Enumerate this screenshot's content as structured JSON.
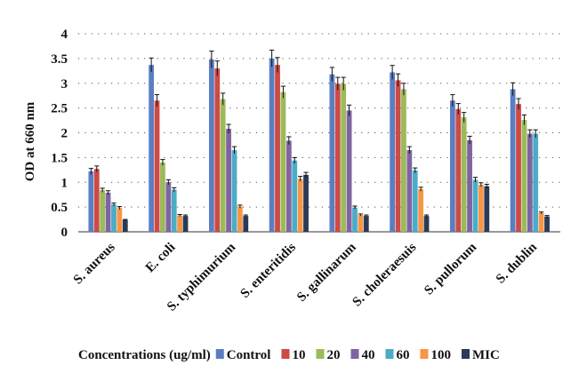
{
  "chart_data": {
    "type": "bar",
    "ylabel": "OD at 660 nm",
    "ylim": [
      0,
      4
    ],
    "yticks": [
      "0",
      "0.5",
      "1",
      "1.5",
      "2",
      "2.5",
      "3",
      "3.5",
      "4"
    ],
    "grid": "horizontal dotted",
    "legend_position": "bottom",
    "legend_title": "Concentrations (ug/ml)",
    "categories": [
      "S. aureus",
      "E. coli",
      "S. typhimurium",
      "S. enteritidis",
      "S. gallinarum",
      "S. choleraesuis",
      "S. pullorum",
      "S. dublin"
    ],
    "series": [
      {
        "name": "Control",
        "color": "#5b7ec2",
        "values": [
          1.22,
          3.37,
          3.48,
          3.5,
          3.18,
          3.22,
          2.65,
          2.88
        ],
        "errors": [
          0.06,
          0.14,
          0.17,
          0.17,
          0.14,
          0.14,
          0.12,
          0.13
        ]
      },
      {
        "name": "10",
        "color": "#cd4a45",
        "values": [
          1.27,
          2.65,
          3.3,
          3.37,
          2.99,
          3.06,
          2.48,
          2.58
        ],
        "errors": [
          0.06,
          0.12,
          0.15,
          0.15,
          0.13,
          0.13,
          0.11,
          0.11
        ]
      },
      {
        "name": "20",
        "color": "#9bbb59",
        "values": [
          0.84,
          1.4,
          2.68,
          2.82,
          2.99,
          2.88,
          2.31,
          2.26
        ],
        "errors": [
          0.04,
          0.06,
          0.12,
          0.12,
          0.13,
          0.12,
          0.1,
          0.1
        ]
      },
      {
        "name": "40",
        "color": "#8064a2",
        "values": [
          0.79,
          1.0,
          2.08,
          1.84,
          2.45,
          1.65,
          1.85,
          1.98
        ],
        "errors": [
          0.04,
          0.05,
          0.09,
          0.08,
          0.11,
          0.07,
          0.08,
          0.08
        ]
      },
      {
        "name": "60",
        "color": "#4bacc6",
        "values": [
          0.55,
          0.85,
          1.65,
          1.44,
          0.49,
          1.24,
          1.05,
          1.98
        ],
        "errors": [
          0.03,
          0.04,
          0.07,
          0.06,
          0.03,
          0.05,
          0.05,
          0.08
        ]
      },
      {
        "name": "100",
        "color": "#f79646",
        "values": [
          0.48,
          0.33,
          0.51,
          1.07,
          0.34,
          0.86,
          0.95,
          0.38
        ],
        "errors": [
          0.03,
          0.02,
          0.03,
          0.05,
          0.02,
          0.04,
          0.04,
          0.02
        ]
      },
      {
        "name": "MIC",
        "color": "#2b3a55",
        "values": [
          0.24,
          0.32,
          0.32,
          1.15,
          0.32,
          0.32,
          0.92,
          0.31
        ],
        "errors": [
          0.01,
          0.02,
          0.02,
          0.05,
          0.02,
          0.02,
          0.04,
          0.02
        ]
      }
    ]
  }
}
